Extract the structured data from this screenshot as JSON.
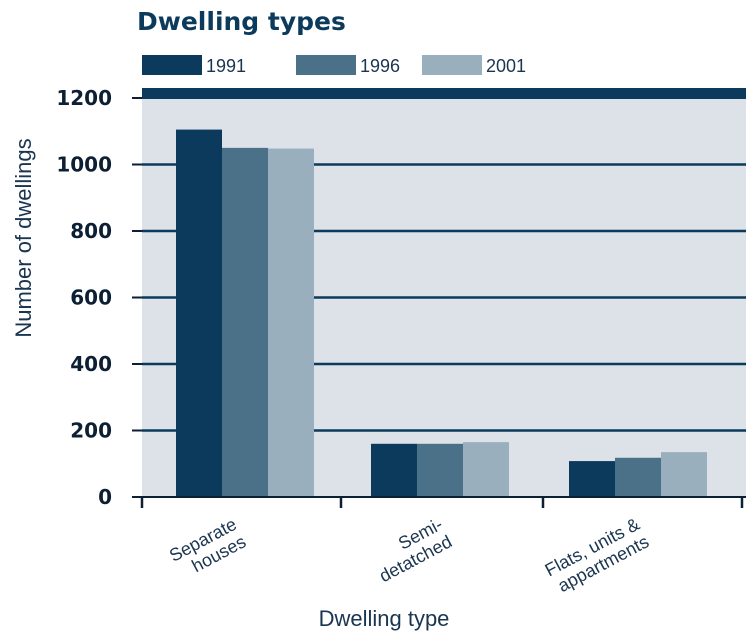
{
  "chart_data": {
    "type": "bar",
    "title": "Dwelling types",
    "xlabel": "Dwelling type",
    "ylabel": "Number of dwellings",
    "ylim": [
      0,
      1200
    ],
    "yticks": [
      "0",
      "200",
      "400",
      "600",
      "800",
      "1000",
      "1200"
    ],
    "categories": [
      [
        "Separate",
        "houses"
      ],
      [
        "Semi-",
        "detatched"
      ],
      [
        "Flats, units &",
        "appartments"
      ]
    ],
    "series": [
      {
        "name": "1991",
        "values": [
          1105,
          160,
          108
        ],
        "color": "#0b3a5c"
      },
      {
        "name": "1996",
        "values": [
          1050,
          160,
          118
        ],
        "color": "#4b7189"
      },
      {
        "name": "2001",
        "values": [
          1048,
          165,
          135
        ],
        "color": "#99afbd"
      }
    ],
    "grid": true,
    "legend_position": "top-left",
    "colors": {
      "plot_background": "#dde1e8",
      "frame": "#0b3a5c",
      "gridline": "#0b3a5c"
    }
  }
}
